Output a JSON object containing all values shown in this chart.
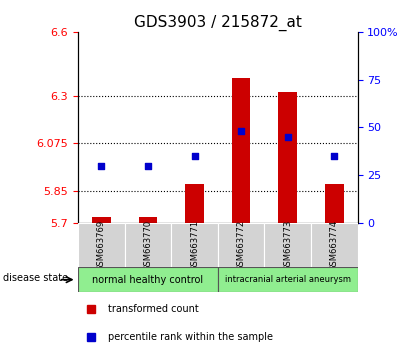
{
  "title": "GDS3903 / 215872_at",
  "samples": [
    "GSM663769",
    "GSM663770",
    "GSM663771",
    "GSM663772",
    "GSM663773",
    "GSM663774"
  ],
  "transformed_count": [
    5.73,
    5.73,
    5.885,
    6.385,
    6.315,
    5.885
  ],
  "percentile_rank": [
    30,
    30,
    35,
    48,
    45,
    35
  ],
  "ylim_left": [
    5.7,
    6.6
  ],
  "ylim_right": [
    0,
    100
  ],
  "yticks_left": [
    5.7,
    5.85,
    6.075,
    6.3,
    6.6
  ],
  "yticks_right": [
    0,
    25,
    50,
    75,
    100
  ],
  "hlines": [
    5.85,
    6.075,
    6.3
  ],
  "bar_color": "#cc0000",
  "dot_color": "#0000cc",
  "bar_bottom": 5.7,
  "group1_label": "normal healthy control",
  "group2_label": "intracranial arterial aneurysm",
  "group_color": "#90ee90",
  "disease_state_label": "disease state",
  "legend_bar_label": "transformed count",
  "legend_dot_label": "percentile rank within the sample",
  "title_fontsize": 11,
  "tick_fontsize": 8,
  "sample_fontsize": 6,
  "legend_fontsize": 7,
  "group_fontsize": 7
}
